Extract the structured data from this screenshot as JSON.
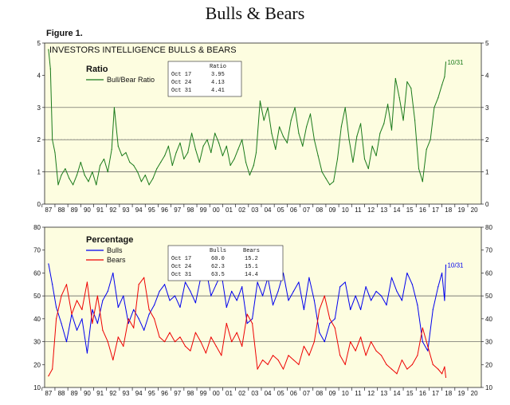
{
  "page_title": "Bulls & Bears",
  "figure_label": "Figure 1.",
  "colors": {
    "panel_bg": "#fdfde0",
    "ratio": "#1a7a1a",
    "bulls": "#0000ee",
    "bears": "#ee0000",
    "ref_line": "#555555"
  },
  "chart_data": [
    {
      "type": "line",
      "title": "INVESTORS INTELLIGENCE BULLS & BEARS",
      "legend_title": "Ratio",
      "ylim": [
        0,
        5
      ],
      "y_ticks": [
        "0",
        "1",
        "2",
        "3",
        "4",
        "5"
      ],
      "x_ticks": [
        "87",
        "88",
        "89",
        "90",
        "91",
        "92",
        "93",
        "94",
        "95",
        "96",
        "97",
        "98",
        "99",
        "00",
        "01",
        "02",
        "03",
        "04",
        "05",
        "06",
        "07",
        "08",
        "09",
        "10",
        "11",
        "12",
        "13",
        "14",
        "15",
        "16",
        "17",
        "18",
        "19",
        "20"
      ],
      "reference_lines": [
        1,
        2,
        3
      ],
      "end_label": "10/31",
      "grid": false,
      "series": [
        {
          "name": "Bull/Bear Ratio",
          "x": [
            1987.0,
            1987.15,
            1987.3,
            1987.5,
            1987.75,
            1988.0,
            1988.3,
            1988.6,
            1988.9,
            1989.2,
            1989.5,
            1989.8,
            1990.1,
            1990.4,
            1990.7,
            1991.0,
            1991.3,
            1991.6,
            1991.9,
            1992.1,
            1992.4,
            1992.7,
            1993.0,
            1993.3,
            1993.6,
            1993.9,
            1994.2,
            1994.5,
            1994.8,
            1995.1,
            1995.4,
            1995.7,
            1996.0,
            1996.3,
            1996.6,
            1996.9,
            1997.2,
            1997.5,
            1997.8,
            1998.1,
            1998.4,
            1998.7,
            1999.0,
            1999.3,
            1999.6,
            1999.9,
            2000.2,
            2000.5,
            2000.8,
            2001.1,
            2001.4,
            2001.7,
            2002.0,
            2002.3,
            2002.6,
            2002.9,
            2003.1,
            2003.4,
            2003.7,
            2004.0,
            2004.3,
            2004.6,
            2004.9,
            2005.2,
            2005.5,
            2005.8,
            2006.1,
            2006.4,
            2006.7,
            2007.0,
            2007.3,
            2007.6,
            2007.9,
            2008.2,
            2008.5,
            2008.8,
            2009.1,
            2009.4,
            2009.7,
            2010.0,
            2010.3,
            2010.6,
            2010.9,
            2011.2,
            2011.5,
            2011.8,
            2012.1,
            2012.4,
            2012.7,
            2013.0,
            2013.3,
            2013.6,
            2013.9,
            2014.2,
            2014.5,
            2014.8,
            2015.1,
            2015.4,
            2015.7,
            2016.0,
            2016.3,
            2016.6,
            2016.9,
            2017.2,
            2017.5,
            2017.7,
            2017.8
          ],
          "y": [
            4.8,
            4.2,
            2.0,
            1.6,
            0.6,
            0.9,
            1.1,
            0.8,
            0.6,
            0.9,
            1.3,
            0.9,
            0.7,
            1.0,
            0.6,
            1.2,
            1.4,
            1.0,
            1.7,
            3.0,
            1.8,
            1.5,
            1.6,
            1.3,
            1.2,
            1.0,
            0.7,
            0.9,
            0.6,
            0.8,
            1.1,
            1.3,
            1.5,
            1.8,
            1.2,
            1.6,
            1.9,
            1.4,
            1.6,
            2.2,
            1.7,
            1.3,
            1.8,
            2.0,
            1.6,
            2.2,
            1.9,
            1.5,
            1.8,
            1.2,
            1.4,
            1.7,
            2.0,
            1.3,
            0.9,
            1.2,
            1.6,
            3.2,
            2.6,
            3.0,
            2.2,
            1.7,
            2.4,
            2.1,
            1.9,
            2.6,
            3.0,
            2.2,
            1.8,
            2.4,
            2.8,
            2.0,
            1.5,
            1.0,
            0.8,
            0.6,
            0.7,
            1.4,
            2.4,
            3.0,
            2.0,
            1.3,
            2.1,
            2.5,
            1.4,
            1.1,
            1.8,
            1.5,
            2.2,
            2.5,
            3.1,
            2.3,
            3.9,
            3.3,
            2.6,
            3.8,
            3.6,
            2.6,
            1.1,
            0.7,
            1.7,
            2.0,
            3.0,
            3.3,
            3.7,
            3.95,
            4.41
          ]
        }
      ],
      "table": {
        "header": "Ratio",
        "rows": [
          {
            "date": "Oct 17",
            "v1": "3.95"
          },
          {
            "date": "Oct 24",
            "v1": "4.13"
          },
          {
            "date": "Oct 31",
            "v1": "4.41"
          }
        ]
      }
    },
    {
      "type": "line",
      "legend_title": "Percentage",
      "ylim": [
        10,
        80
      ],
      "y_ticks": [
        "10",
        "20",
        "30",
        "40",
        "50",
        "60",
        "70",
        "80"
      ],
      "x_ticks": [
        "87",
        "88",
        "89",
        "90",
        "91",
        "92",
        "93",
        "94",
        "95",
        "96",
        "97",
        "98",
        "99",
        "00",
        "01",
        "02",
        "03",
        "04",
        "05",
        "06",
        "07",
        "08",
        "09",
        "10",
        "11",
        "12",
        "13",
        "14",
        "15",
        "16",
        "17",
        "18",
        "19",
        "20"
      ],
      "reference_lines": [
        30,
        50
      ],
      "end_label": "10/31",
      "grid": false,
      "series": [
        {
          "name": "Bulls",
          "x": [
            1987.0,
            1987.3,
            1987.6,
            1988.0,
            1988.4,
            1988.8,
            1989.2,
            1989.6,
            1990.0,
            1990.4,
            1990.8,
            1991.2,
            1991.6,
            1992.0,
            1992.4,
            1992.8,
            1993.2,
            1993.6,
            1994.0,
            1994.4,
            1994.8,
            1995.2,
            1995.6,
            1996.0,
            1996.4,
            1996.8,
            1997.2,
            1997.6,
            1998.0,
            1998.4,
            1998.8,
            1999.2,
            1999.6,
            2000.0,
            2000.4,
            2000.8,
            2001.2,
            2001.6,
            2002.0,
            2002.4,
            2002.8,
            2003.2,
            2003.6,
            2004.0,
            2004.4,
            2004.8,
            2005.2,
            2005.6,
            2006.0,
            2006.4,
            2006.8,
            2007.2,
            2007.6,
            2008.0,
            2008.4,
            2008.8,
            2009.2,
            2009.6,
            2010.0,
            2010.4,
            2010.8,
            2011.2,
            2011.6,
            2012.0,
            2012.4,
            2012.8,
            2013.2,
            2013.6,
            2014.0,
            2014.4,
            2014.8,
            2015.2,
            2015.6,
            2016.0,
            2016.4,
            2016.8,
            2017.2,
            2017.5,
            2017.7,
            2017.8
          ],
          "y": [
            64,
            55,
            45,
            38,
            30,
            42,
            35,
            40,
            25,
            44,
            38,
            48,
            52,
            60,
            45,
            50,
            38,
            44,
            40,
            35,
            42,
            46,
            52,
            55,
            48,
            50,
            45,
            56,
            52,
            47,
            58,
            62,
            50,
            55,
            60,
            45,
            52,
            48,
            54,
            38,
            40,
            56,
            50,
            58,
            46,
            52,
            60,
            48,
            52,
            56,
            44,
            58,
            48,
            34,
            30,
            38,
            40,
            54,
            56,
            44,
            50,
            44,
            54,
            48,
            52,
            50,
            46,
            58,
            52,
            48,
            60,
            55,
            46,
            30,
            26,
            44,
            54,
            60,
            48,
            63.5
          ]
        },
        {
          "name": "Bears",
          "x": [
            1987.0,
            1987.3,
            1987.6,
            1988.0,
            1988.4,
            1988.8,
            1989.2,
            1989.6,
            1990.0,
            1990.4,
            1990.8,
            1991.2,
            1991.6,
            1992.0,
            1992.4,
            1992.8,
            1993.2,
            1993.6,
            1994.0,
            1994.4,
            1994.8,
            1995.2,
            1995.6,
            1996.0,
            1996.4,
            1996.8,
            1997.2,
            1997.6,
            1998.0,
            1998.4,
            1998.8,
            1999.2,
            1999.6,
            2000.0,
            2000.4,
            2000.8,
            2001.2,
            2001.6,
            2002.0,
            2002.4,
            2002.8,
            2003.2,
            2003.6,
            2004.0,
            2004.4,
            2004.8,
            2005.2,
            2005.6,
            2006.0,
            2006.4,
            2006.8,
            2007.2,
            2007.6,
            2008.0,
            2008.4,
            2008.8,
            2009.2,
            2009.6,
            2010.0,
            2010.4,
            2010.8,
            2011.2,
            2011.6,
            2012.0,
            2012.4,
            2012.8,
            2013.2,
            2013.6,
            2014.0,
            2014.4,
            2014.8,
            2015.2,
            2015.6,
            2016.0,
            2016.4,
            2016.8,
            2017.2,
            2017.5,
            2017.7,
            2017.8
          ],
          "y": [
            15,
            18,
            40,
            50,
            55,
            42,
            48,
            44,
            56,
            38,
            50,
            35,
            30,
            22,
            32,
            28,
            40,
            36,
            55,
            58,
            44,
            40,
            32,
            30,
            34,
            30,
            32,
            28,
            26,
            34,
            30,
            25,
            32,
            28,
            24,
            38,
            30,
            34,
            28,
            42,
            38,
            18,
            22,
            20,
            24,
            22,
            18,
            24,
            22,
            20,
            28,
            24,
            30,
            44,
            50,
            40,
            36,
            24,
            20,
            30,
            26,
            32,
            24,
            30,
            26,
            24,
            20,
            18,
            16,
            22,
            18,
            20,
            24,
            36,
            28,
            20,
            18,
            16,
            19,
            14.4
          ]
        }
      ],
      "table": {
        "header1": "Bulls",
        "header2": "Bears",
        "rows": [
          {
            "date": "Oct 17",
            "v1": "60.0",
            "v2": "15.2"
          },
          {
            "date": "Oct 24",
            "v1": "62.3",
            "v2": "15.1"
          },
          {
            "date": "Oct 31",
            "v1": "63.5",
            "v2": "14.4"
          }
        ]
      }
    }
  ]
}
